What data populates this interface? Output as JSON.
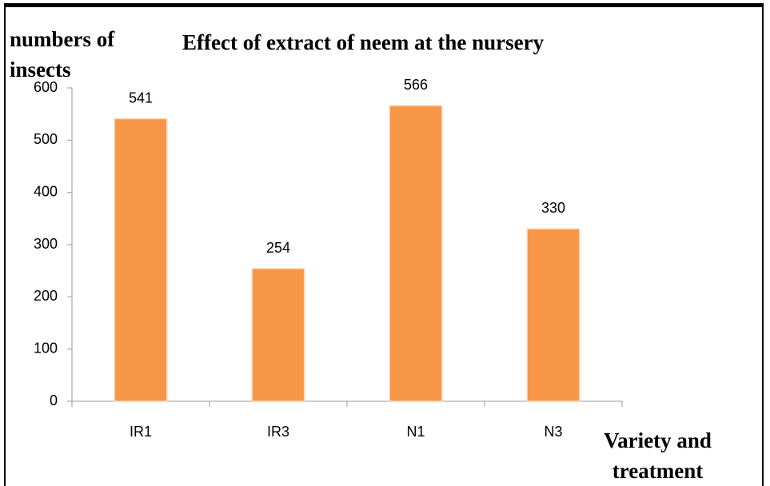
{
  "chart_data": {
    "type": "bar",
    "title": "Effect of extract of neem at the nursery",
    "y_label": "numbers of insects",
    "x_label": "Variety and treatment",
    "categories": [
      "IR1",
      "IR3",
      "N1",
      "N3"
    ],
    "values": [
      541,
      254,
      566,
      330
    ],
    "color": "#f79646",
    "ylim": [
      0,
      600
    ],
    "yticks": [
      0,
      100,
      200,
      300,
      400,
      500,
      600
    ],
    "grid": false
  }
}
